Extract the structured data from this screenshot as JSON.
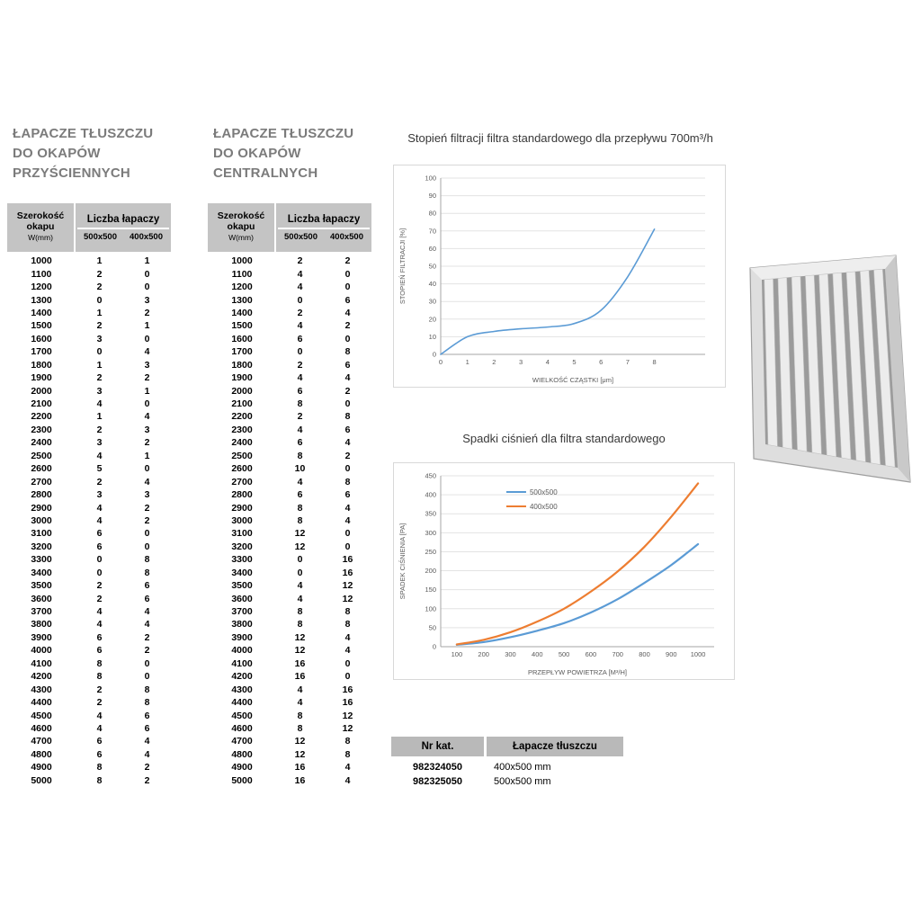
{
  "images": {
    "filter_photo": "baffle-grease-filter"
  },
  "tables": [
    {
      "title_lines": [
        "ŁAPACZE TŁUSZCZU",
        "DO OKAPÓW",
        "PRZYŚCIENNYCH"
      ],
      "header": {
        "col1_line1": "Szerokość",
        "col1_line2": "okapu",
        "col1_unit": "W(mm)",
        "group": "Liczba łapaczy",
        "sub1": "500x500",
        "sub2": "400x500"
      },
      "rows": [
        [
          1000,
          1,
          1
        ],
        [
          1100,
          2,
          0
        ],
        [
          1200,
          2,
          0
        ],
        [
          1300,
          0,
          3
        ],
        [
          1400,
          1,
          2
        ],
        [
          1500,
          2,
          1
        ],
        [
          1600,
          3,
          0
        ],
        [
          1700,
          0,
          4
        ],
        [
          1800,
          1,
          3
        ],
        [
          1900,
          2,
          2
        ],
        [
          2000,
          3,
          1
        ],
        [
          2100,
          4,
          0
        ],
        [
          2200,
          1,
          4
        ],
        [
          2300,
          2,
          3
        ],
        [
          2400,
          3,
          2
        ],
        [
          2500,
          4,
          1
        ],
        [
          2600,
          5,
          0
        ],
        [
          2700,
          2,
          4
        ],
        [
          2800,
          3,
          3
        ],
        [
          2900,
          4,
          2
        ],
        [
          3000,
          4,
          2
        ],
        [
          3100,
          6,
          0
        ],
        [
          3200,
          6,
          0
        ],
        [
          3300,
          0,
          8
        ],
        [
          3400,
          0,
          8
        ],
        [
          3500,
          2,
          6
        ],
        [
          3600,
          2,
          6
        ],
        [
          3700,
          4,
          4
        ],
        [
          3800,
          4,
          4
        ],
        [
          3900,
          6,
          2
        ],
        [
          4000,
          6,
          2
        ],
        [
          4100,
          8,
          0
        ],
        [
          4200,
          8,
          0
        ],
        [
          4300,
          2,
          8
        ],
        [
          4400,
          2,
          8
        ],
        [
          4500,
          4,
          6
        ],
        [
          4600,
          4,
          6
        ],
        [
          4700,
          6,
          4
        ],
        [
          4800,
          6,
          4
        ],
        [
          4900,
          8,
          2
        ],
        [
          5000,
          8,
          2
        ]
      ]
    },
    {
      "title_lines": [
        "ŁAPACZE TŁUSZCZU",
        "DO OKAPÓW",
        "CENTRALNYCH"
      ],
      "header": {
        "col1_line1": "Szerokość",
        "col1_line2": "okapu",
        "col1_unit": "W(mm)",
        "group": "Liczba łapaczy",
        "sub1": "500x500",
        "sub2": "400x500"
      },
      "rows": [
        [
          1000,
          2,
          2
        ],
        [
          1100,
          4,
          0
        ],
        [
          1200,
          4,
          0
        ],
        [
          1300,
          0,
          6
        ],
        [
          1400,
          2,
          4
        ],
        [
          1500,
          4,
          2
        ],
        [
          1600,
          6,
          0
        ],
        [
          1700,
          0,
          8
        ],
        [
          1800,
          2,
          6
        ],
        [
          1900,
          4,
          4
        ],
        [
          2000,
          6,
          2
        ],
        [
          2100,
          8,
          0
        ],
        [
          2200,
          2,
          8
        ],
        [
          2300,
          4,
          6
        ],
        [
          2400,
          6,
          4
        ],
        [
          2500,
          8,
          2
        ],
        [
          2600,
          10,
          0
        ],
        [
          2700,
          4,
          8
        ],
        [
          2800,
          6,
          6
        ],
        [
          2900,
          8,
          4
        ],
        [
          3000,
          8,
          4
        ],
        [
          3100,
          12,
          0
        ],
        [
          3200,
          12,
          0
        ],
        [
          3300,
          0,
          16
        ],
        [
          3400,
          0,
          16
        ],
        [
          3500,
          4,
          12
        ],
        [
          3600,
          4,
          12
        ],
        [
          3700,
          8,
          8
        ],
        [
          3800,
          8,
          8
        ],
        [
          3900,
          12,
          4
        ],
        [
          4000,
          12,
          4
        ],
        [
          4100,
          16,
          0
        ],
        [
          4200,
          16,
          0
        ],
        [
          4300,
          4,
          16
        ],
        [
          4400,
          4,
          16
        ],
        [
          4500,
          8,
          12
        ],
        [
          4600,
          8,
          12
        ],
        [
          4700,
          12,
          8
        ],
        [
          4800,
          12,
          8
        ],
        [
          4900,
          16,
          4
        ],
        [
          5000,
          16,
          4
        ]
      ]
    }
  ],
  "chart_data": [
    {
      "type": "line",
      "title": "Stopień filtracji filtra standardowego dla przepływu 700m³/h",
      "xlabel": "WIELKOŚĆ CZĄSTKI [μm]",
      "ylabel": "STOPIEŃ FILTRACJI [%]",
      "xlim": [
        0,
        9.9
      ],
      "ylim": [
        0,
        100
      ],
      "xticks": [
        0,
        1,
        2,
        3,
        4,
        5,
        6,
        7,
        8
      ],
      "yticks": [
        0,
        10,
        20,
        30,
        40,
        50,
        60,
        70,
        80,
        90,
        100
      ],
      "grid": "horizontal",
      "legend_position": "none",
      "series": [
        {
          "name": "stopień filtracji",
          "color": "#5b9bd5",
          "x": [
            0,
            1,
            2,
            3,
            4,
            5,
            6,
            7,
            8
          ],
          "y": [
            0,
            10,
            13,
            14.5,
            15.5,
            17.5,
            25,
            44,
            71
          ]
        }
      ]
    },
    {
      "type": "line",
      "title": "Spadki ciśnień dla filtra standardowego",
      "xlabel": "PRZEPŁYW POWIETRZA [M³/H]",
      "ylabel": "SPADEK CIŚNIENIA [PA]",
      "xlim": [
        40,
        1060
      ],
      "ylim": [
        0,
        450
      ],
      "xticks": [
        100,
        200,
        300,
        400,
        500,
        600,
        700,
        800,
        900,
        1000
      ],
      "yticks": [
        0,
        50,
        100,
        150,
        200,
        250,
        300,
        350,
        400,
        450
      ],
      "grid": "horizontal",
      "legend_position": "top-left-inside",
      "series": [
        {
          "name": "500x500",
          "color": "#5b9bd5",
          "x": [
            100,
            200,
            300,
            400,
            500,
            600,
            700,
            800,
            900,
            1000
          ],
          "y": [
            5,
            12,
            25,
            42,
            62,
            90,
            125,
            168,
            215,
            270
          ]
        },
        {
          "name": "400x500",
          "color": "#ed7d31",
          "x": [
            100,
            200,
            300,
            400,
            500,
            600,
            700,
            800,
            900,
            1000
          ],
          "y": [
            6,
            18,
            38,
            66,
            100,
            145,
            198,
            263,
            342,
            430
          ]
        }
      ]
    }
  ],
  "catalog": {
    "headers": [
      "Nr kat.",
      "Łapacze tłuszczu"
    ],
    "rows": [
      [
        "982324050",
        "400x500 mm"
      ],
      [
        "982325050",
        "500x500 mm"
      ]
    ]
  }
}
